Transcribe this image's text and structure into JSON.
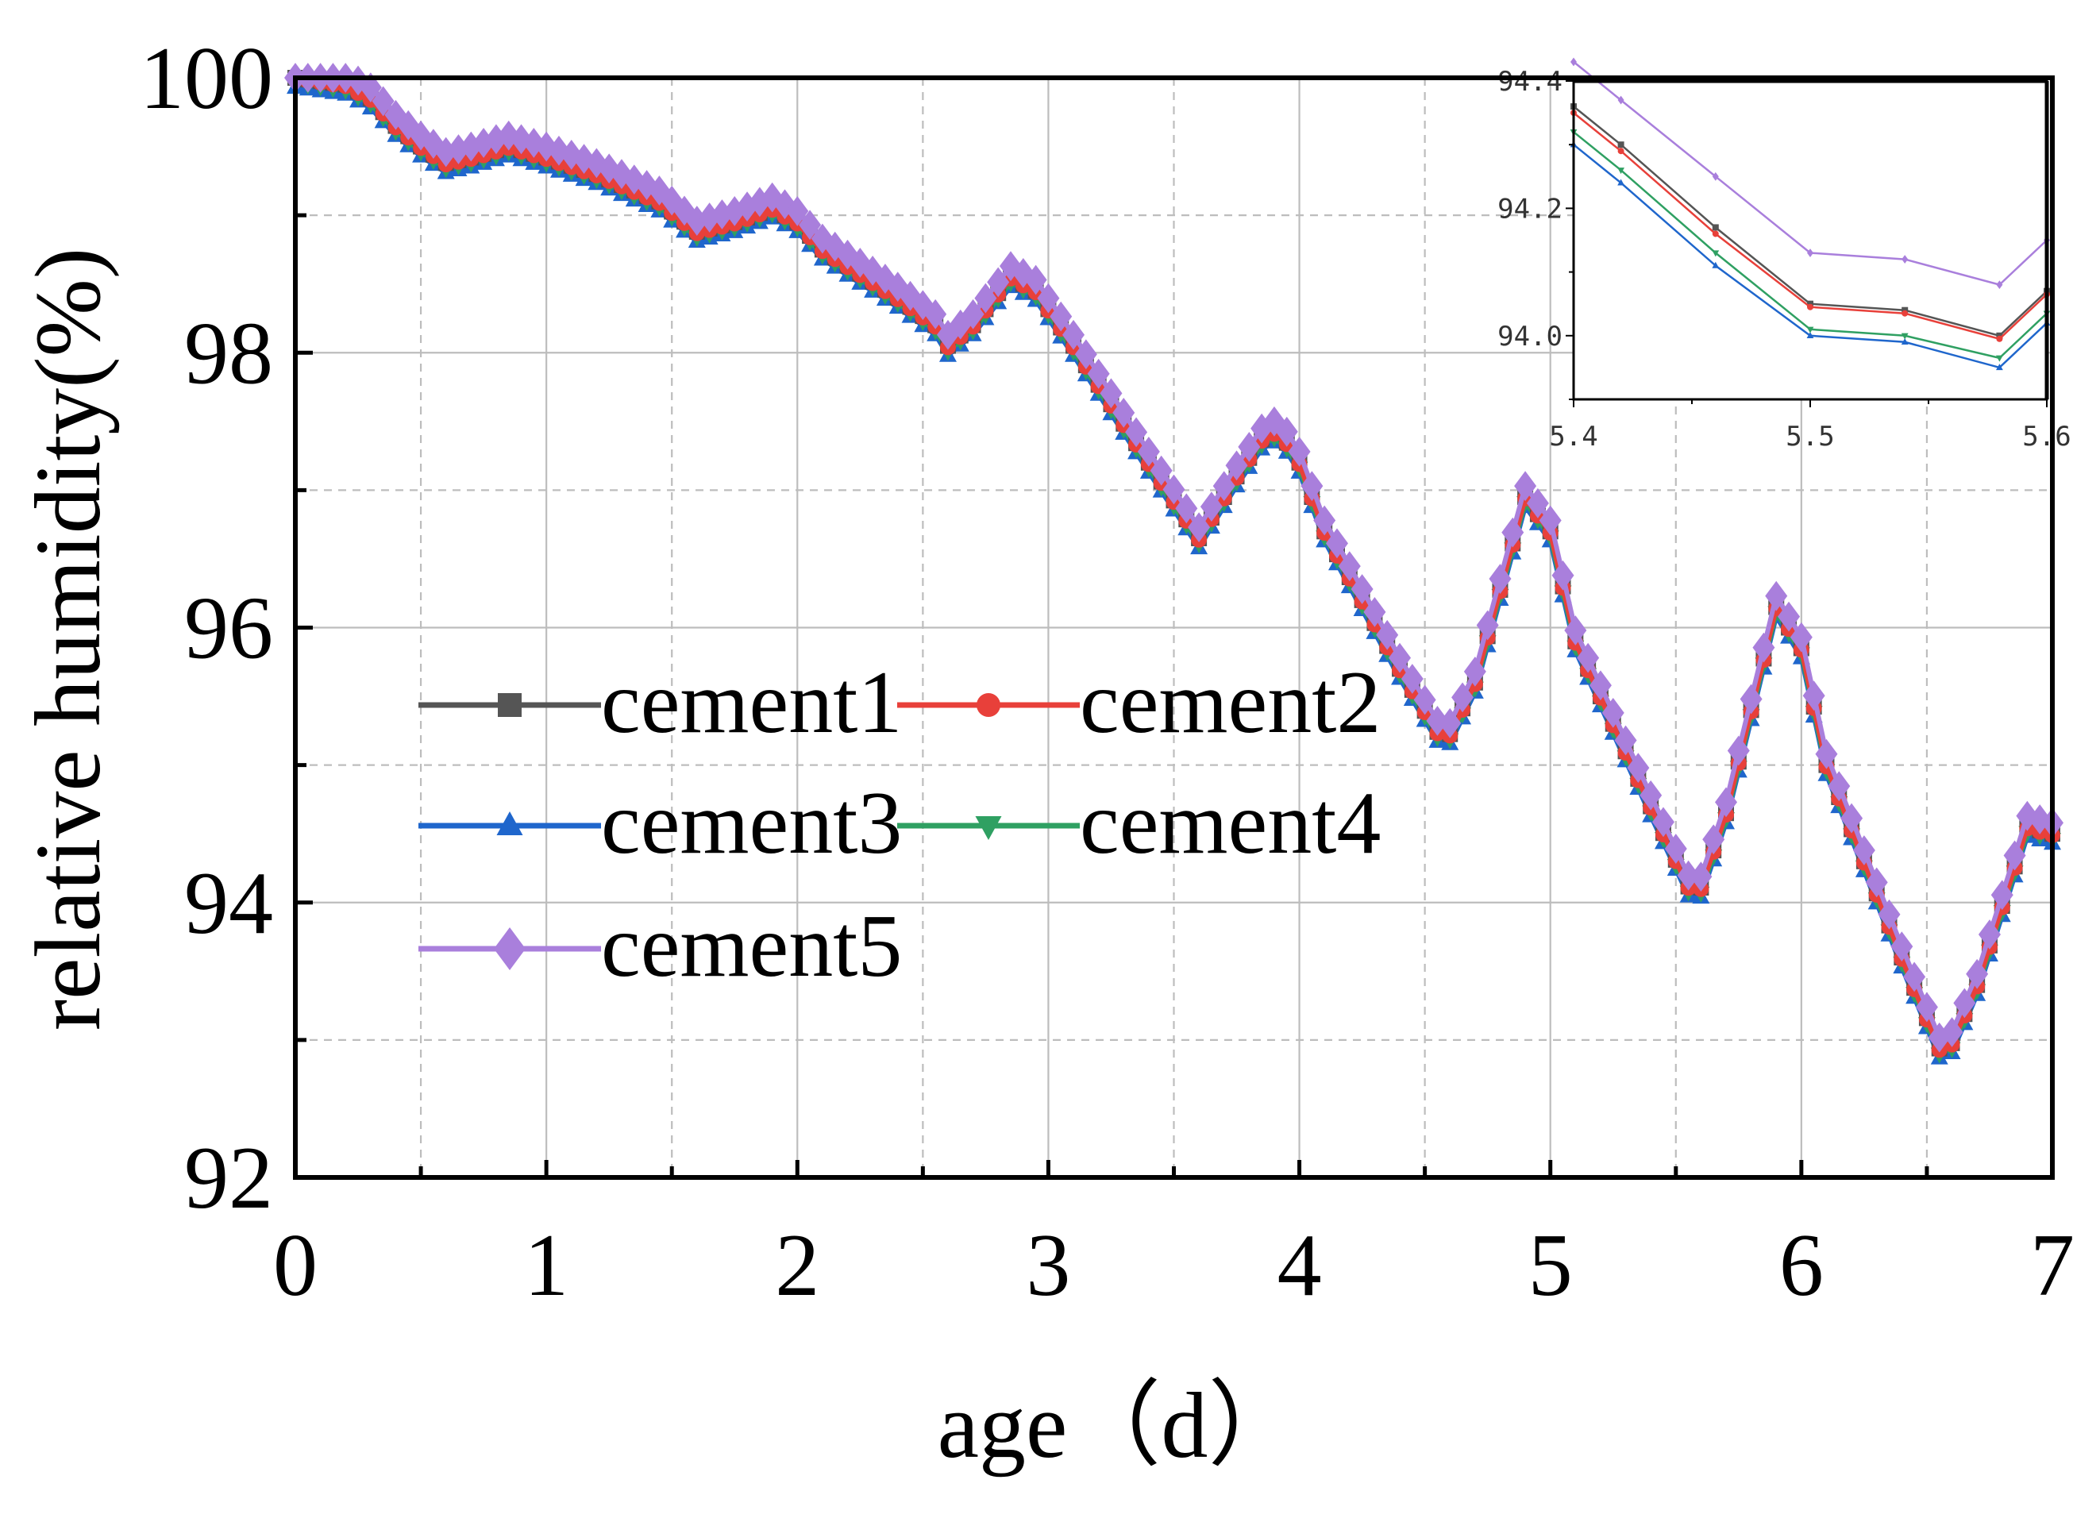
{
  "chart_data": [
    {
      "type": "line",
      "xlabel": "age（d）",
      "ylabel": "relative humidity(%)",
      "xlim": [
        0,
        7
      ],
      "ylim": [
        92,
        100
      ],
      "xticks": [
        "0",
        "1",
        "2",
        "3",
        "4",
        "5",
        "6",
        "7"
      ],
      "yticks": [
        "92",
        "94",
        "96",
        "98",
        "100"
      ],
      "grid": true,
      "legend_position": "middle-left",
      "series": [
        {
          "name": "cement1",
          "color": "#555555",
          "marker": "square",
          "offset": 0.0
        },
        {
          "name": "cement2",
          "color": "#e8403a",
          "marker": "circle",
          "offset": -0.01
        },
        {
          "name": "cement3",
          "color": "#1f66cc",
          "marker": "triangle-up",
          "offset": -0.07
        },
        {
          "name": "cement4",
          "color": "#2fa062",
          "marker": "triangle-down",
          "offset": -0.04
        },
        {
          "name": "cement5",
          "color": "#a97fdc",
          "marker": "diamond",
          "offset": 0.08
        }
      ],
      "base_curve": {
        "x": [
          0,
          0.2,
          0.3,
          0.4,
          0.5,
          0.6,
          0.7,
          0.85,
          1.0,
          1.2,
          1.45,
          1.6,
          1.75,
          1.9,
          2.0,
          2.1,
          2.4,
          2.55,
          2.6,
          2.7,
          2.85,
          2.95,
          3.1,
          3.4,
          3.6,
          3.75,
          3.88,
          3.98,
          4.1,
          4.4,
          4.58,
          4.7,
          4.9,
          5.0,
          5.1,
          5.4,
          5.58,
          5.7,
          5.9,
          6.0,
          6.1,
          6.4,
          6.57,
          6.7,
          6.9,
          7.0
        ],
        "y": [
          100,
          99.95,
          99.85,
          99.65,
          99.5,
          99.38,
          99.42,
          99.5,
          99.42,
          99.3,
          99.1,
          98.88,
          98.95,
          99.05,
          98.95,
          98.75,
          98.4,
          98.2,
          98.05,
          98.2,
          98.55,
          98.45,
          98.05,
          97.2,
          96.65,
          97.1,
          97.45,
          97.3,
          96.7,
          95.7,
          95.15,
          95.6,
          96.95,
          96.7,
          95.9,
          94.7,
          94.0,
          94.65,
          96.15,
          95.85,
          95.0,
          93.6,
          92.85,
          93.4,
          94.55,
          94.5
        ]
      }
    },
    {
      "type": "line",
      "role": "inset",
      "xlim": [
        5.4,
        5.6
      ],
      "ylim": [
        93.9,
        94.4
      ],
      "xticks": [
        "5.4",
        "5.5",
        "5.6"
      ],
      "yticks": [
        "94.0",
        "94.2",
        "94.4"
      ],
      "x": [
        5.4,
        5.42,
        5.46,
        5.5,
        5.54,
        5.58,
        5.6
      ],
      "series": [
        {
          "name": "cement1",
          "color": "#555555",
          "values": [
            94.36,
            94.3,
            94.17,
            94.05,
            94.04,
            94.0,
            94.07
          ]
        },
        {
          "name": "cement2",
          "color": "#e8403a",
          "values": [
            94.35,
            94.29,
            94.16,
            94.045,
            94.035,
            93.995,
            94.065
          ]
        },
        {
          "name": "cement3",
          "color": "#1f66cc",
          "values": [
            94.3,
            94.24,
            94.11,
            94.0,
            93.99,
            93.95,
            94.02
          ]
        },
        {
          "name": "cement4",
          "color": "#2fa062",
          "values": [
            94.32,
            94.26,
            94.13,
            94.01,
            94.0,
            93.965,
            94.035
          ]
        },
        {
          "name": "cement5",
          "color": "#a97fdc",
          "values": [
            94.43,
            94.37,
            94.25,
            94.13,
            94.12,
            94.08,
            94.15
          ]
        }
      ]
    }
  ]
}
